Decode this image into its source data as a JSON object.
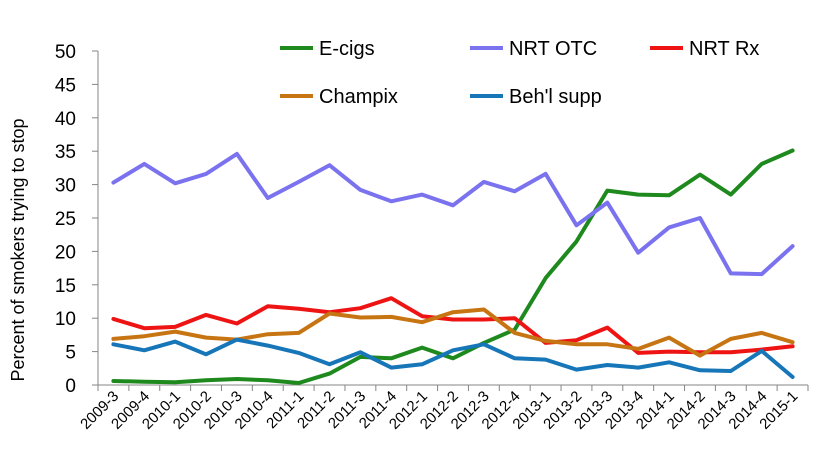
{
  "chart_data": {
    "type": "line",
    "ylabel": "Percent of smokers trying to stop",
    "xlabel": "",
    "ylim": [
      0,
      50
    ],
    "yticks": [
      "0",
      "5",
      "10",
      "15",
      "20",
      "25",
      "30",
      "35",
      "40",
      "45",
      "50"
    ],
    "grid": false,
    "legend_placement": "top",
    "categories": [
      "2009-3",
      "2009-4",
      "2010-1",
      "2010-2",
      "2010-3",
      "2010-4",
      "2011-1",
      "2011-2",
      "2011-3",
      "2011-4",
      "2012-1",
      "2012-2",
      "2012-3",
      "2012-4",
      "2013-1",
      "2013-2",
      "2013-3",
      "2013-4",
      "2014-1",
      "2014-2",
      "2014-3",
      "2014-4",
      "2015-1"
    ],
    "series": [
      {
        "name": "E-cigs",
        "color": "#1e8a1e",
        "values": [
          0.6,
          0.5,
          0.4,
          0.7,
          0.9,
          0.7,
          0.3,
          1.7,
          4.2,
          4.0,
          5.6,
          4.0,
          6.3,
          8.3,
          16.0,
          21.5,
          29.1,
          28.5,
          28.4,
          31.5,
          28.5,
          33.1,
          35.1
        ]
      },
      {
        "name": "NRT OTC",
        "color": "#7a72ee",
        "values": [
          30.3,
          33.1,
          30.2,
          31.6,
          34.6,
          28.0,
          30.4,
          32.9,
          29.2,
          27.5,
          28.5,
          26.9,
          30.4,
          29.0,
          31.6,
          23.9,
          27.3,
          19.8,
          23.6,
          25.0,
          16.7,
          16.6,
          20.8
        ]
      },
      {
        "name": "NRT Rx",
        "color": "#ee1414",
        "values": [
          9.9,
          8.5,
          8.7,
          10.5,
          9.2,
          11.8,
          11.4,
          10.9,
          11.5,
          13.0,
          10.3,
          9.8,
          9.8,
          10.0,
          6.3,
          6.7,
          8.6,
          4.8,
          5.0,
          4.9,
          4.9,
          5.3,
          5.8
        ]
      },
      {
        "name": "Champix",
        "color": "#c77512",
        "values": [
          6.9,
          7.3,
          8.0,
          7.1,
          6.8,
          7.6,
          7.8,
          10.7,
          10.1,
          10.2,
          9.4,
          10.9,
          11.3,
          7.8,
          6.6,
          6.1,
          6.1,
          5.4,
          7.1,
          4.4,
          6.9,
          7.8,
          6.4
        ]
      },
      {
        "name": "Beh'l supp",
        "color": "#1776b8",
        "values": [
          6.1,
          5.2,
          6.5,
          4.6,
          6.8,
          5.9,
          4.8,
          3.1,
          4.9,
          2.6,
          3.1,
          5.2,
          6.1,
          4.0,
          3.8,
          2.3,
          3.0,
          2.6,
          3.4,
          2.2,
          2.1,
          5.1,
          1.2
        ]
      }
    ]
  }
}
